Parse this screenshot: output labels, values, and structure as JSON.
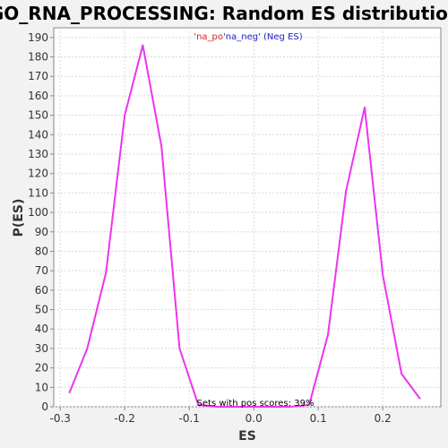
{
  "chart_data": {
    "type": "line",
    "title": "GO_RNA_PROCESSING: Random ES distribution",
    "xlabel": "ES",
    "ylabel": "P(ES)",
    "xlim": [
      -0.31,
      0.29
    ],
    "ylim": [
      0,
      195
    ],
    "xticks": [
      -0.3,
      -0.2,
      -0.1,
      0.0,
      0.1,
      0.2
    ],
    "xtick_labels": [
      "-0.3",
      "-0.2",
      "-0.1",
      "0.0",
      "0.1",
      "0.2"
    ],
    "yticks": [
      0,
      10,
      20,
      30,
      40,
      50,
      60,
      70,
      80,
      90,
      100,
      110,
      120,
      130,
      140,
      150,
      160,
      170,
      180,
      190
    ],
    "grid": true,
    "legend": {
      "placement": "top-center",
      "prefix_pos": "'na_po",
      "prefix_neg": "'na_neg'",
      "suffix": " (Neg ES)"
    },
    "annotation": "Sets with pos scores: 39%",
    "series": [
      {
        "color": "#ee33ee",
        "x": [
          -0.286,
          -0.258,
          -0.229,
          -0.2,
          -0.172,
          -0.143,
          -0.115,
          -0.086,
          -0.058,
          -0.029,
          0.0,
          0.029,
          0.057,
          0.086,
          0.115,
          0.143,
          0.172,
          0.2,
          0.229,
          0.258
        ],
        "y": [
          7,
          30,
          69,
          150,
          186,
          134,
          30,
          1,
          0,
          0,
          0,
          0,
          0,
          1,
          37,
          111,
          154,
          68,
          17,
          4
        ]
      }
    ],
    "colors": {
      "plot_background": "#ffffff",
      "page_background": "#f2f2f2",
      "grid": "#d9d9d9",
      "axis": "#888888",
      "legend_pos": "#dd2222",
      "legend_neg": "#2222cc"
    }
  }
}
